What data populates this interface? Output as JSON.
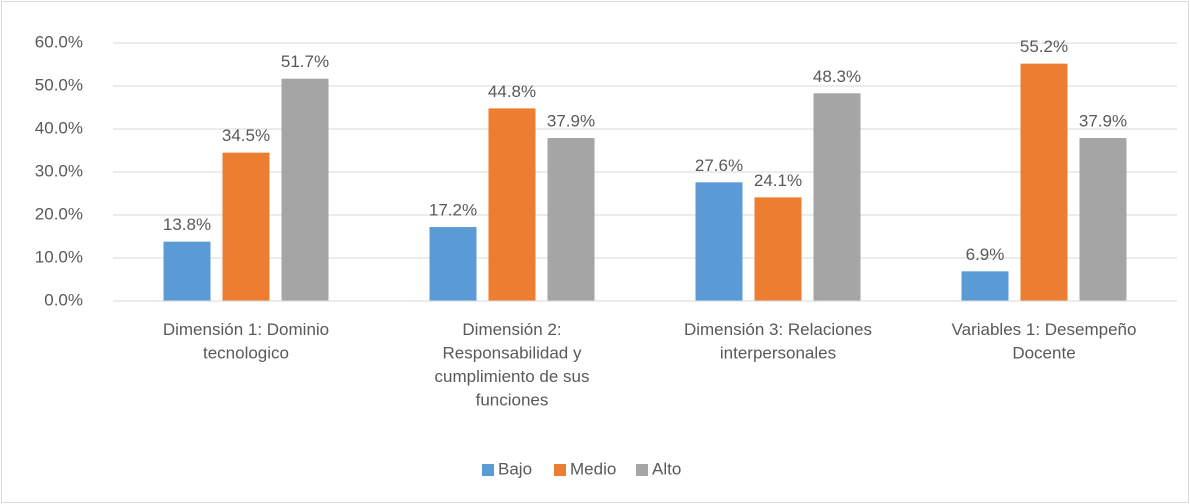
{
  "chart_data": {
    "type": "bar",
    "categories": [
      "Dimensión 1: Dominio tecnologico",
      "Dimensión 2: Responsabilidad y cumplimiento de sus funciones",
      "Dimensión 3: Relaciones interpersonales",
      "Variables 1: Desempeño Docente"
    ],
    "series": [
      {
        "name": "Bajo",
        "color": "#5b9bd5",
        "values": [
          13.8,
          17.2,
          27.6,
          6.9
        ],
        "value_labels": [
          "13.8%",
          "17.2%",
          "27.6%",
          "6.9%"
        ]
      },
      {
        "name": "Medio",
        "color": "#ed7d31",
        "values": [
          34.5,
          44.8,
          24.1,
          55.2
        ],
        "value_labels": [
          "34.5%",
          "44.8%",
          "24.1%",
          "55.2%"
        ]
      },
      {
        "name": "Alto",
        "color": "#a5a5a5",
        "values": [
          51.7,
          37.9,
          48.3,
          37.9
        ],
        "value_labels": [
          "51.7%",
          "37.9%",
          "48.3%",
          "37.9%"
        ]
      }
    ],
    "ylim": [
      0,
      60
    ],
    "yticks": [
      {
        "value": 0,
        "label": "0.0%"
      },
      {
        "value": 10,
        "label": "10.0%"
      },
      {
        "value": 20,
        "label": "20.0%"
      },
      {
        "value": 30,
        "label": "30.0%"
      },
      {
        "value": 40,
        "label": "40.0%"
      },
      {
        "value": 50,
        "label": "50.0%"
      },
      {
        "value": 60,
        "label": "60.0%"
      }
    ],
    "grid": true,
    "legend": "bottom"
  }
}
